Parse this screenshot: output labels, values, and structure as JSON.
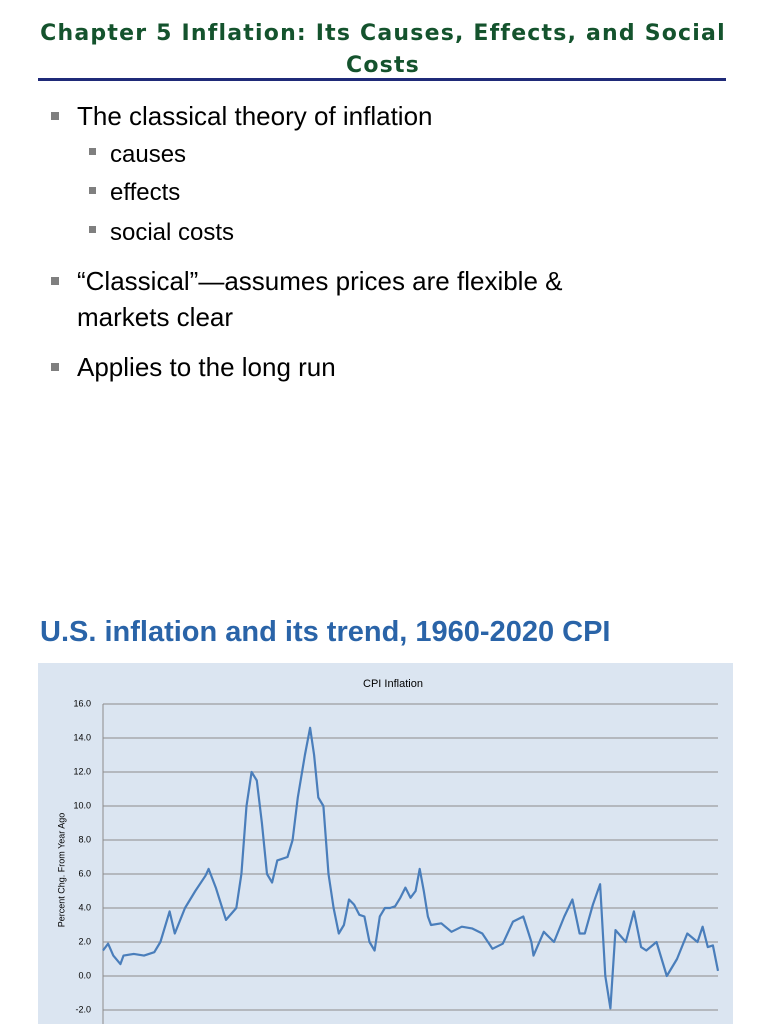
{
  "header": {
    "title": "Chapter 5 Inflation: Its Causes, Effects, and Social Costs"
  },
  "bullets": [
    {
      "text": "The classical theory of inflation",
      "children": [
        "causes",
        "effects",
        "social costs"
      ]
    },
    {
      "text": "“Classical”—assumes prices are flexible & markets clear"
    },
    {
      "text": "Applies to the long run"
    }
  ],
  "section_title": "U.S. inflation and its trend, 1960-2020 CPI",
  "chart_data": {
    "type": "line",
    "title": "CPI Inflation",
    "y_label": "Percent Chg. From Year Ago",
    "color": "#4a7ebb",
    "grid": true,
    "ylim": [
      -2,
      16
    ],
    "yticks": [
      {
        "value": -2,
        "label": "-2.0"
      },
      {
        "value": 0,
        "label": "0.0"
      },
      {
        "value": 2,
        "label": "2.0"
      },
      {
        "value": 4,
        "label": "4.0"
      },
      {
        "value": 6,
        "label": "6.0"
      },
      {
        "value": 8,
        "label": "8.0"
      },
      {
        "value": 10,
        "label": "10.0"
      },
      {
        "value": 12,
        "label": "12.0"
      },
      {
        "value": 14,
        "label": "14.0"
      },
      {
        "value": 16,
        "label": "16.0"
      }
    ],
    "x": [
      1960,
      1960.5,
      1961,
      1961.7,
      1962,
      1963,
      1964,
      1965,
      1965.6,
      1966.5,
      1967,
      1968,
      1969,
      1970,
      1970.3,
      1971,
      1972,
      1973,
      1973.5,
      1974,
      1974.5,
      1975,
      1975.5,
      1976,
      1976.5,
      1977,
      1978,
      1978.5,
      1979,
      1979.7,
      1980.2,
      1980.6,
      1981,
      1981.5,
      1982,
      1982.5,
      1983,
      1983.5,
      1984,
      1984.5,
      1985,
      1985.5,
      1986,
      1986.5,
      1987,
      1987.5,
      1988,
      1988.5,
      1989,
      1989.5,
      1990,
      1990.5,
      1990.9,
      1991.3,
      1991.7,
      1992,
      1993,
      1994,
      1995,
      1996,
      1997,
      1998,
      1999,
      2000,
      2001,
      2001.8,
      2002,
      2003,
      2004,
      2005,
      2005.8,
      2006.5,
      2007,
      2007.8,
      2008.5,
      2009,
      2009.5,
      2010,
      2011,
      2011.8,
      2012.5,
      2013,
      2014,
      2015,
      2016,
      2017,
      2018,
      2018.5,
      2019,
      2019.5,
      2020
    ],
    "values": [
      1.5,
      1.9,
      1.2,
      0.7,
      1.2,
      1.3,
      1.2,
      1.4,
      2.0,
      3.8,
      2.5,
      4.0,
      5.0,
      5.9,
      6.3,
      5.2,
      3.3,
      4.0,
      6.0,
      10.0,
      12.0,
      11.5,
      9.0,
      6.0,
      5.5,
      6.8,
      7.0,
      8.0,
      10.5,
      13.0,
      14.6,
      13.0,
      10.5,
      10.0,
      6.0,
      4.0,
      2.5,
      3.0,
      4.5,
      4.2,
      3.6,
      3.5,
      2.0,
      1.5,
      3.5,
      4.0,
      4.0,
      4.1,
      4.6,
      5.2,
      4.6,
      5.0,
      6.3,
      5.0,
      3.5,
      3.0,
      3.1,
      2.6,
      2.9,
      2.8,
      2.5,
      1.6,
      1.9,
      3.2,
      3.5,
      2.0,
      1.2,
      2.6,
      2.0,
      3.5,
      4.5,
      2.5,
      2.5,
      4.2,
      5.4,
      0.0,
      -1.9,
      2.7,
      2.0,
      3.8,
      1.7,
      1.5,
      2.0,
      0.0,
      1.0,
      2.5,
      2.0,
      2.9,
      1.7,
      1.8,
      0.3
    ]
  }
}
